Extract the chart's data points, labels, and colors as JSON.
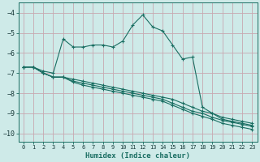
{
  "xlabel": "Humidex (Indice chaleur)",
  "bg_color": "#ceeae8",
  "grid_color": "#c8a8b0",
  "line_color": "#1a6e62",
  "marker": "+",
  "xlim": [
    -0.5,
    23.5
  ],
  "ylim": [
    -10.4,
    -3.5
  ],
  "yticks": [
    -10,
    -9,
    -8,
    -7,
    -6,
    -5,
    -4
  ],
  "xticks": [
    0,
    1,
    2,
    3,
    4,
    5,
    6,
    7,
    8,
    9,
    10,
    11,
    12,
    13,
    14,
    15,
    16,
    17,
    18,
    19,
    20,
    21,
    22,
    23
  ],
  "line1_x": [
    0,
    1,
    2,
    3,
    4,
    5,
    6,
    7,
    8,
    9,
    10,
    11,
    12,
    13,
    14,
    15,
    16,
    17,
    18,
    19,
    20,
    21,
    22,
    23
  ],
  "line1_y": [
    -6.7,
    -6.7,
    -6.9,
    -7.0,
    -5.3,
    -5.7,
    -5.7,
    -5.6,
    -5.6,
    -5.7,
    -5.4,
    -4.6,
    -4.1,
    -4.7,
    -4.9,
    -5.6,
    -6.3,
    -6.2,
    -8.7,
    -9.0,
    -9.3,
    -9.4,
    -9.5,
    -9.6
  ],
  "line2_x": [
    0,
    1,
    2,
    3,
    4,
    5,
    6,
    7,
    8,
    9,
    10,
    11,
    12,
    13,
    14,
    15,
    16,
    17,
    18,
    19,
    20,
    21,
    22,
    23
  ],
  "line2_y": [
    -6.7,
    -6.7,
    -7.0,
    -7.2,
    -7.2,
    -7.3,
    -7.4,
    -7.5,
    -7.6,
    -7.7,
    -7.8,
    -7.9,
    -8.0,
    -8.1,
    -8.2,
    -8.3,
    -8.5,
    -8.7,
    -8.9,
    -9.0,
    -9.2,
    -9.3,
    -9.4,
    -9.5
  ],
  "line3_x": [
    0,
    1,
    2,
    3,
    4,
    5,
    6,
    7,
    8,
    9,
    10,
    11,
    12,
    13,
    14,
    15,
    16,
    17,
    18,
    19,
    20,
    21,
    22,
    23
  ],
  "line3_y": [
    -6.7,
    -6.7,
    -7.0,
    -7.2,
    -7.2,
    -7.4,
    -7.5,
    -7.6,
    -7.7,
    -7.8,
    -7.9,
    -8.0,
    -8.1,
    -8.2,
    -8.3,
    -8.5,
    -8.7,
    -8.9,
    -9.0,
    -9.2,
    -9.35,
    -9.45,
    -9.55,
    -9.65
  ],
  "line4_x": [
    0,
    1,
    2,
    3,
    4,
    5,
    6,
    7,
    8,
    9,
    10,
    11,
    12,
    13,
    14,
    15,
    16,
    17,
    18,
    19,
    20,
    21,
    22,
    23
  ],
  "line4_y": [
    -6.7,
    -6.7,
    -7.0,
    -7.2,
    -7.2,
    -7.45,
    -7.6,
    -7.7,
    -7.8,
    -7.9,
    -8.0,
    -8.1,
    -8.2,
    -8.3,
    -8.4,
    -8.6,
    -8.8,
    -9.0,
    -9.15,
    -9.3,
    -9.5,
    -9.6,
    -9.7,
    -9.8
  ]
}
